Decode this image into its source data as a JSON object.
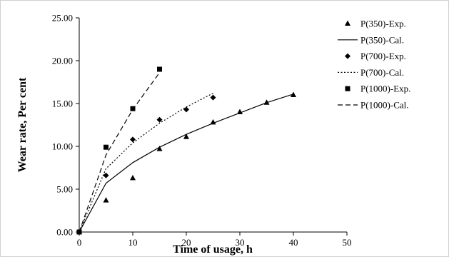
{
  "chart_data": {
    "type": "scatter",
    "title": "",
    "xlabel": "Time of usage, h",
    "ylabel": "Wear rate, Per cent",
    "xlim": [
      0,
      50
    ],
    "ylim": [
      0,
      25
    ],
    "xticks": [
      0,
      10,
      20,
      30,
      40,
      50
    ],
    "yticks": [
      0,
      5,
      10,
      15,
      20,
      25
    ],
    "ytick_labels": [
      "0.00",
      "5.00",
      "10.00",
      "15.00",
      "20.00",
      "25.00"
    ],
    "grid": false,
    "legend_position": "right",
    "series": [
      {
        "name": "P(350)-Exp.",
        "kind": "markers",
        "marker": "triangle",
        "x": [
          0,
          5,
          10,
          15,
          20,
          25,
          30,
          35,
          40
        ],
        "y": [
          0.0,
          3.7,
          6.3,
          9.7,
          11.1,
          12.8,
          14.0,
          15.1,
          16.0
        ]
      },
      {
        "name": "P(350)-Cal.",
        "kind": "line",
        "dash": "solid",
        "x": [
          0,
          5,
          10,
          15,
          20,
          25,
          30,
          35,
          40
        ],
        "y": [
          0.0,
          5.7,
          8.1,
          9.9,
          11.4,
          12.7,
          13.9,
          15.1,
          16.1
        ]
      },
      {
        "name": "P(700)-Exp.",
        "kind": "markers",
        "marker": "diamond",
        "x": [
          0,
          5,
          10,
          15,
          20,
          25
        ],
        "y": [
          0.0,
          6.6,
          10.8,
          13.1,
          14.3,
          15.7
        ]
      },
      {
        "name": "P(700)-Cal.",
        "kind": "line",
        "dash": "dotted",
        "x": [
          0,
          5,
          10,
          15,
          20,
          25
        ],
        "y": [
          0.0,
          7.4,
          10.4,
          12.7,
          14.6,
          16.2
        ]
      },
      {
        "name": "P(1000)-Exp.",
        "kind": "markers",
        "marker": "square",
        "x": [
          0,
          5,
          10,
          15
        ],
        "y": [
          0.0,
          9.9,
          14.4,
          19.0
        ]
      },
      {
        "name": "P(1000)-Cal.",
        "kind": "line",
        "dash": "dashed",
        "x": [
          0,
          5,
          10,
          15
        ],
        "y": [
          0.0,
          9.0,
          14.3,
          18.6
        ]
      }
    ]
  }
}
